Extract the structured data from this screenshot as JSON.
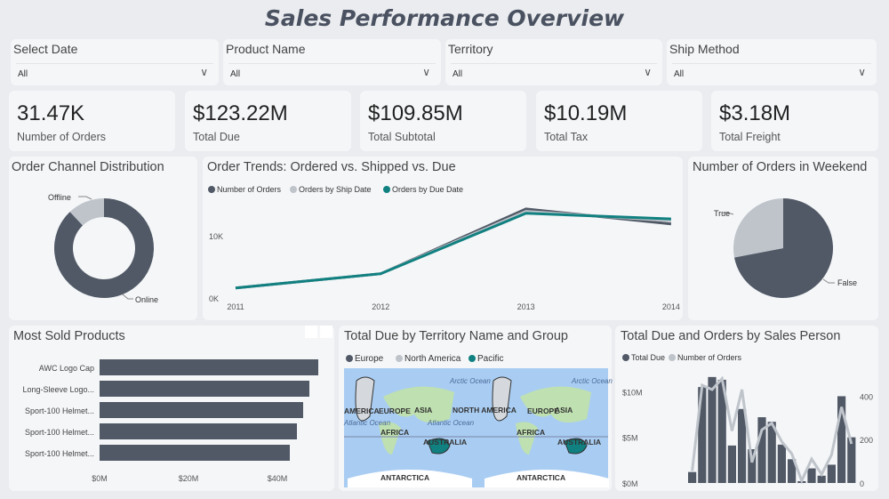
{
  "header": {
    "title": "Sales Performance Overview"
  },
  "filters": [
    {
      "label": "Select Date",
      "value": "All"
    },
    {
      "label": "Product Name",
      "value": "All"
    },
    {
      "label": "Territory",
      "value": "All"
    },
    {
      "label": "Ship Method",
      "value": "All"
    }
  ],
  "kpis": [
    {
      "value": "31.47K",
      "label": "Number of Orders"
    },
    {
      "value": "$123.22M",
      "label": "Total Due"
    },
    {
      "value": "$109.85M",
      "label": "Total Subtotal"
    },
    {
      "value": "$10.19M",
      "label": "Total Tax"
    },
    {
      "value": "$3.18M",
      "label": "Total Freight"
    }
  ],
  "colors": {
    "dark": "#515966",
    "light": "#bfc4cb",
    "teal": "#118080",
    "ocean": "#a9cdf2",
    "land": "#bfe0b0"
  },
  "chart_data": [
    {
      "type": "pie",
      "variant": "donut",
      "title": "Order Channel Distribution",
      "categories": [
        "Online",
        "Offline"
      ],
      "values": [
        88,
        12
      ]
    },
    {
      "type": "line",
      "title": "Order Trends: Ordered vs. Shipped vs. Due",
      "x": [
        "2011",
        "2012",
        "2013",
        "2014"
      ],
      "yticks": [
        "0K",
        "10K"
      ],
      "ylim": [
        0,
        18000
      ],
      "series": [
        {
          "name": "Number of Orders",
          "values": [
            1600,
            3900,
            14300,
            11900
          ]
        },
        {
          "name": "Orders by Ship Date",
          "values": [
            1600,
            3900,
            13900,
            12400
          ]
        },
        {
          "name": "Orders by Due Date",
          "values": [
            1600,
            3900,
            13600,
            12700
          ]
        }
      ]
    },
    {
      "type": "pie",
      "title": "Number of Orders in Weekend",
      "categories": [
        "False",
        "True"
      ],
      "values": [
        72,
        28
      ]
    },
    {
      "type": "bar",
      "orientation": "horizontal",
      "title": "Most Sold Products",
      "categories": [
        "AWC Logo Cap",
        "Long-Sleeve Logo...",
        "Sport-100 Helmet...",
        "Sport-100 Helmet...",
        "Sport-100 Helmet..."
      ],
      "values": [
        49.2,
        47.2,
        45.8,
        44.4,
        42.8
      ],
      "xticks": [
        "$0M",
        "$20M",
        "$40M"
      ],
      "xlim": [
        0,
        50
      ]
    },
    {
      "type": "map",
      "title": "Total Due by Territory Name and Group",
      "legend": [
        "Europe",
        "North America",
        "Pacific"
      ],
      "labels": [
        "Arctic Ocean",
        "AMERICA",
        "EUROPE",
        "ASIA",
        "Atlantic Ocean",
        "AFRICA",
        "AUSTRALIA",
        "ANTARCTICA",
        "NORTH AMERICA",
        "EUROPE",
        "ASIA",
        "Atlantic Ocean",
        "AFRICA",
        "AUSTRALIA",
        "ANTARCTICA",
        "Arctic Ocean"
      ]
    },
    {
      "type": "bar+line",
      "title": "Total Due and Orders by Sales Person",
      "series": [
        {
          "name": "Total Due",
          "values": [
            1.2,
            10.5,
            11.6,
            11.3,
            4.1,
            8.1,
            3.7,
            7.2,
            6.7,
            4.2,
            2.6,
            0.2,
            1.6,
            0.8,
            2.0,
            9.5,
            5.0
          ]
        },
        {
          "name": "Number of Orders",
          "values": [
            55,
            450,
            430,
            480,
            240,
            430,
            95,
            245,
            275,
            190,
            135,
            10,
            110,
            40,
            130,
            350,
            180
          ]
        }
      ],
      "yticks_left": [
        "$0M",
        "$5M",
        "$10M"
      ],
      "ylim_left": [
        0,
        12
      ],
      "yticks_right": [
        "0",
        "200",
        "400"
      ],
      "ylim_right": [
        0,
        480
      ]
    }
  ]
}
